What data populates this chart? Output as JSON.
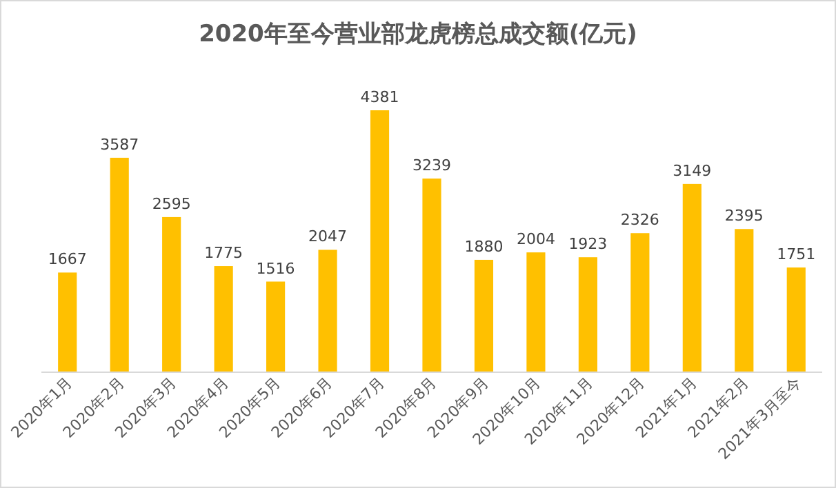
{
  "chart_data": {
    "type": "bar",
    "title": "2020年至今营业部龙虎榜总成交额(亿元)",
    "categories": [
      "2020年1月",
      "2020年2月",
      "2020年3月",
      "2020年4月",
      "2020年5月",
      "2020年6月",
      "2020年7月",
      "2020年8月",
      "2020年9月",
      "2020年10月",
      "2020年11月",
      "2020年12月",
      "2021年1月",
      "2021年2月",
      "2021年3月至今"
    ],
    "values": [
      1667,
      3587,
      2595,
      1775,
      1516,
      2047,
      4381,
      3239,
      1880,
      2004,
      1923,
      2326,
      3149,
      2395,
      1751
    ],
    "color": "#ffc000",
    "data_labels": true
  }
}
